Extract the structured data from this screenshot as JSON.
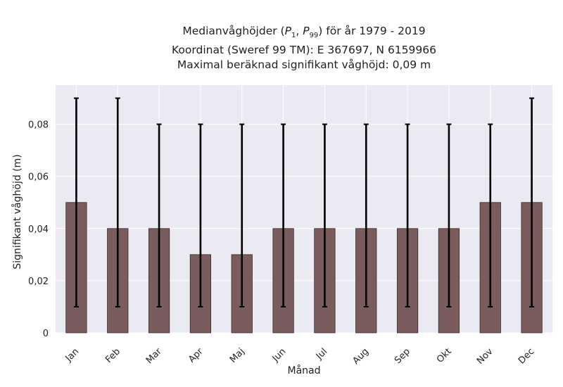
{
  "chart_data": {
    "type": "bar",
    "title": {
      "line1_pre": "Medianvåghöjder (",
      "p1_letter": "P",
      "p1_sub": "1",
      "sep": ", ",
      "p99_letter": "P",
      "p99_sub": "99",
      "line1_post": ") för år 1979 - 2019",
      "line2": "Koordinat (Sweref 99 TM): E 367697, N 6159966",
      "line3": "Maximal beräknad signifikant våghöjd: 0,09 m"
    },
    "xlabel": "Månad",
    "ylabel": "Signifikant våghöjd (m)",
    "categories": [
      "Jan",
      "Feb",
      "Mar",
      "Apr",
      "Maj",
      "Jun",
      "Jul",
      "Aug",
      "Sep",
      "Okt",
      "Nov",
      "Dec"
    ],
    "values": [
      0.05,
      0.04,
      0.04,
      0.03,
      0.03,
      0.04,
      0.04,
      0.04,
      0.04,
      0.04,
      0.05,
      0.05
    ],
    "err_low": [
      0.01,
      0.01,
      0.01,
      0.01,
      0.01,
      0.01,
      0.01,
      0.01,
      0.01,
      0.01,
      0.01,
      0.01
    ],
    "err_high": [
      0.09,
      0.09,
      0.08,
      0.08,
      0.08,
      0.08,
      0.08,
      0.08,
      0.08,
      0.08,
      0.08,
      0.09
    ],
    "ylim": [
      0,
      0.095
    ],
    "yticks": [
      0,
      0.02,
      0.04,
      0.06,
      0.08
    ],
    "ytick_labels": [
      "0",
      "0,02",
      "0,04",
      "0,06",
      "0,08"
    ],
    "grid": true,
    "colors": {
      "bar": "#7b5c5c",
      "bar_edge": "#3a2a2a",
      "error": "#000000",
      "plot_bg": "#eaeaf2",
      "grid": "#ffffff"
    }
  }
}
